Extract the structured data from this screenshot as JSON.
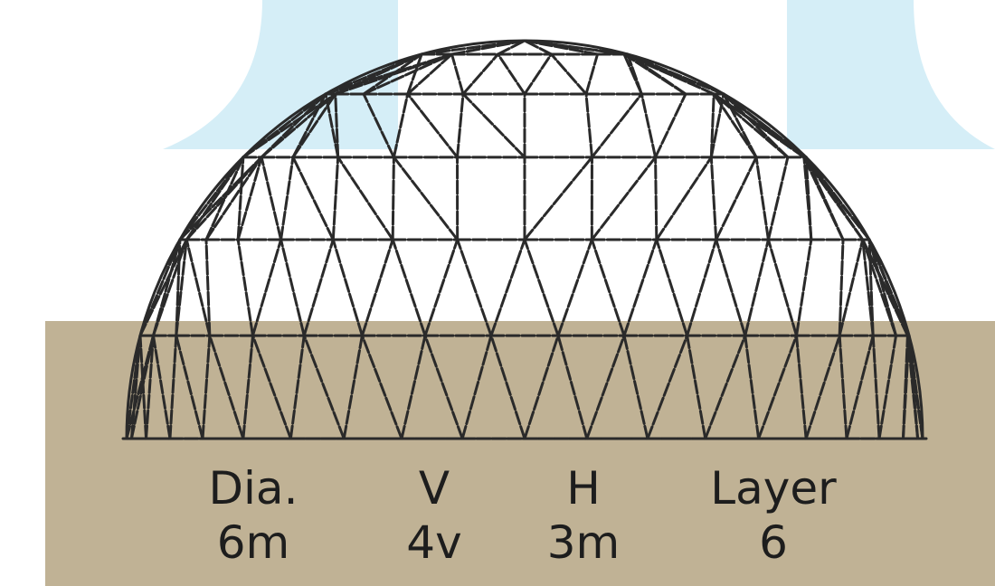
{
  "colors": {
    "background": "#ffffff",
    "ground": "#c0b295",
    "backdrop_tint": "#d5eef7",
    "strut": "#2a2a2a",
    "text": "#1d1d1d"
  },
  "dome": {
    "subject": "geodesic dome frame"
  },
  "specs": [
    {
      "label": "Dia.",
      "value": "6m"
    },
    {
      "label": "V",
      "value": "4v"
    },
    {
      "label": "H",
      "value": "3m"
    },
    {
      "label": "Layer",
      "value": "6"
    }
  ]
}
